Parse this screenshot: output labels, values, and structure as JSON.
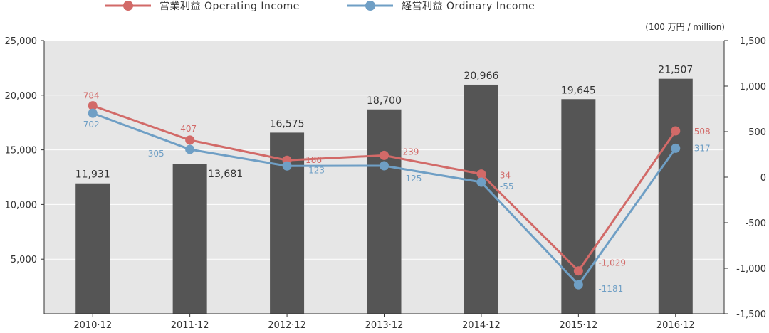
{
  "chart_data": {
    "type": "bar+line",
    "categories": [
      "2010·12",
      "2011·12",
      "2012·12",
      "2013·12",
      "2014·12",
      "2015·12",
      "2016·12"
    ],
    "bars": {
      "values": [
        11931,
        13681,
        16575,
        18700,
        20966,
        19645,
        21507
      ],
      "labels": [
        "11,931",
        "13,681",
        "16,575",
        "18,700",
        "20,966",
        "19,645",
        "21,507"
      ],
      "color": "#555555",
      "axis": "left"
    },
    "series": [
      {
        "name": "営業利益 Operating Income",
        "values": [
          784,
          407,
          186,
          239,
          34,
          -1029,
          508
        ],
        "labels": [
          "784",
          "407",
          "186",
          "239",
          "34",
          "-1,029",
          "508"
        ],
        "color": "#d26a68",
        "axis": "right"
      },
      {
        "name": "経営利益 Ordinary Income",
        "values": [
          702,
          305,
          123,
          125,
          -55,
          -1181,
          317
        ],
        "labels": [
          "702",
          "305",
          "123",
          "125",
          "-55",
          "-1181",
          "317"
        ],
        "color": "#6f9fc5",
        "axis": "right"
      }
    ],
    "left_axis": {
      "ylim": [
        0,
        25000
      ],
      "ticks": [
        "25,000",
        "20,000",
        "15,000",
        "10,000",
        "5,000"
      ]
    },
    "right_axis": {
      "ylim": [
        -1500,
        1500
      ],
      "ticks": [
        "1,500",
        "1,000",
        "500",
        "0",
        "-500",
        "-1,000",
        "-1,500"
      ]
    },
    "unit_label": "(100 万円 / million)",
    "legend_position": "top-left",
    "plot_background": "#e6e6e6",
    "grid": true
  }
}
